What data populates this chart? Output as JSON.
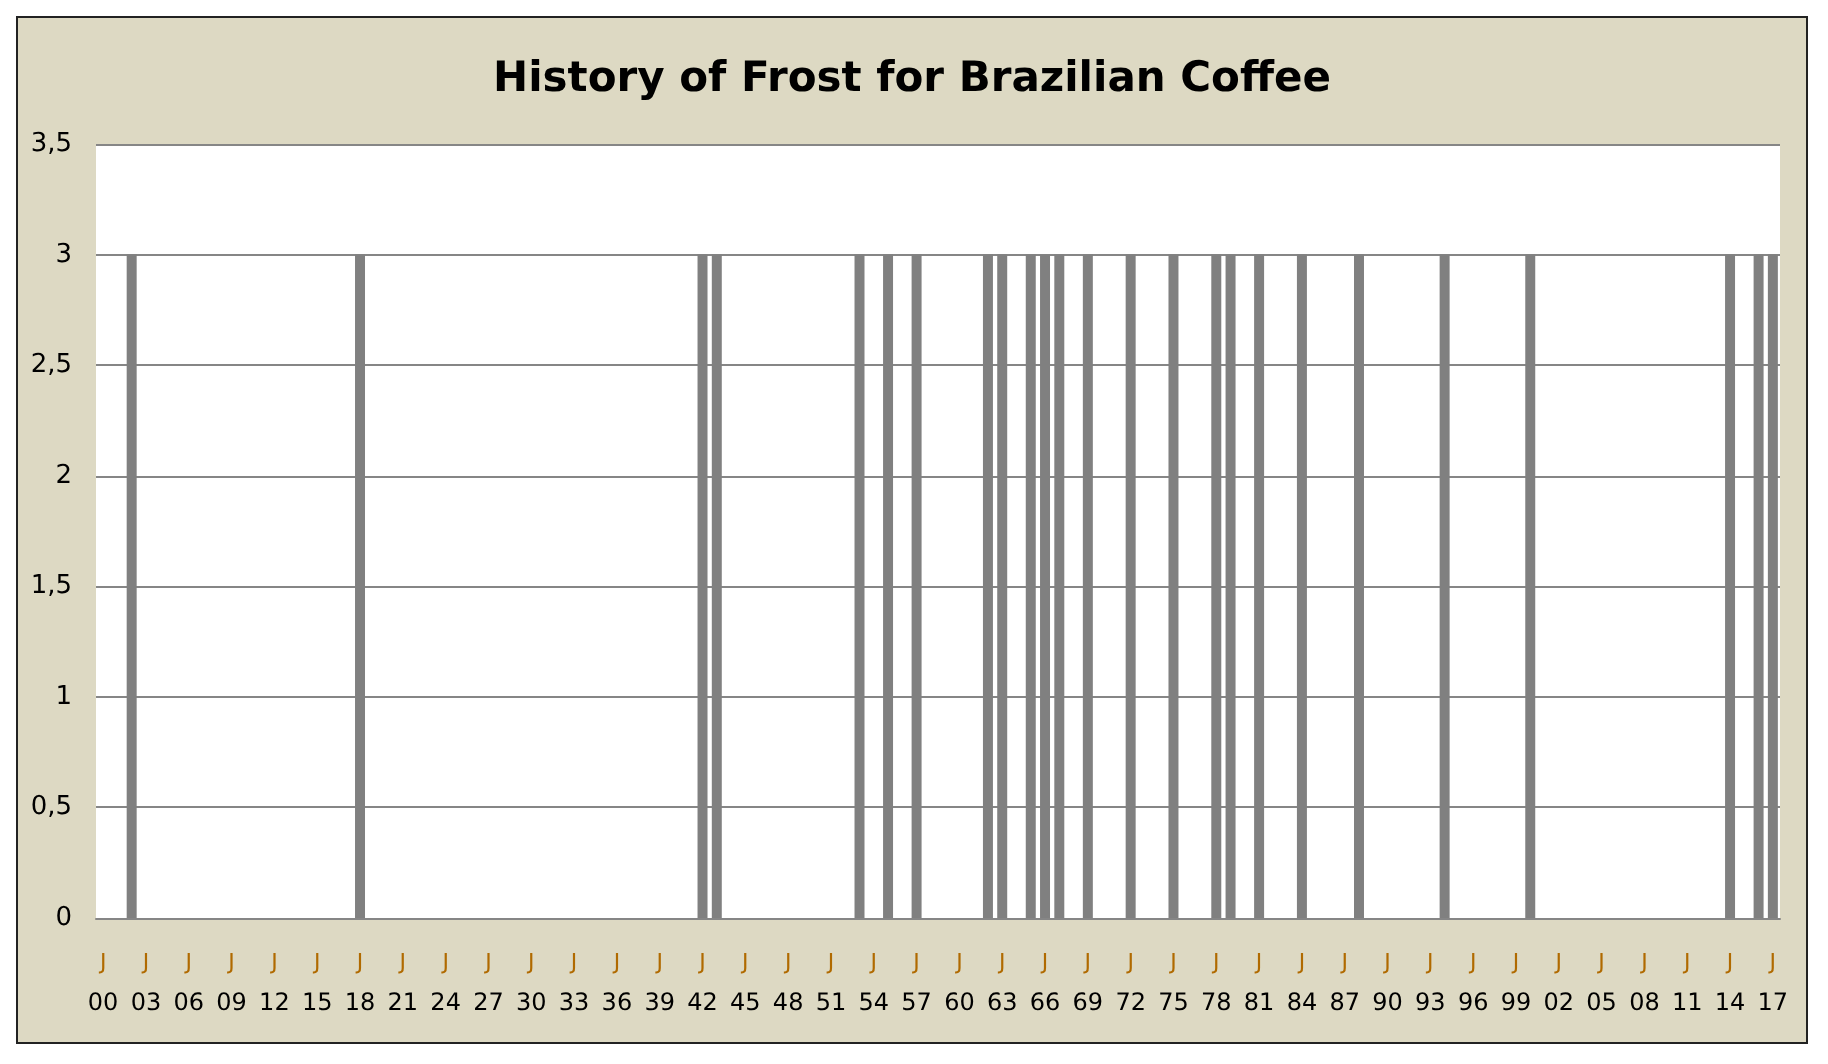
{
  "chart_data": {
    "type": "bar",
    "title": "History of Frost for Brazilian Coffee",
    "categories": [
      "J\n00",
      null,
      null,
      "J\n03",
      null,
      null,
      "J\n06",
      null,
      null,
      "J\n09",
      null,
      null,
      "J\n12",
      null,
      null,
      "J\n15",
      null,
      null,
      "J\n18",
      null,
      null,
      "J\n21",
      null,
      null,
      "J\n24",
      null,
      null,
      "J\n27",
      null,
      null,
      "J\n30",
      null,
      null,
      "J\n33",
      null,
      null,
      "J\n36",
      null,
      null,
      "J\n39",
      null,
      null,
      "J\n42",
      null,
      null,
      "J\n45",
      null,
      null,
      "J\n48",
      null,
      null,
      "J\n51",
      null,
      null,
      "J\n54",
      null,
      null,
      "J\n57",
      null,
      null,
      "J\n60",
      null,
      null,
      "J\n63",
      null,
      null,
      "J\n66",
      null,
      null,
      "J\n69",
      null,
      null,
      "J\n72",
      null,
      null,
      "J\n75",
      null,
      null,
      "J\n78",
      null,
      null,
      "J\n81",
      null,
      null,
      "J\n84",
      null,
      null,
      "J\n87",
      null,
      null,
      "J\n90",
      null,
      null,
      "J\n93",
      null,
      null,
      "J\n96",
      null,
      null,
      "J\n99",
      null,
      null,
      "J\n02",
      null,
      null,
      "J\n05",
      null,
      null,
      "J\n08",
      null,
      null,
      "J\n11",
      null,
      null,
      "J\n14",
      null,
      null,
      "J\n17"
    ],
    "values": [
      0,
      0,
      3,
      0,
      0,
      0,
      0,
      0,
      0,
      0,
      0,
      0,
      0,
      0,
      0,
      0,
      0,
      0,
      3,
      0,
      0,
      0,
      0,
      0,
      0,
      0,
      0,
      0,
      0,
      0,
      0,
      0,
      0,
      0,
      0,
      0,
      0,
      0,
      0,
      0,
      0,
      0,
      3,
      3,
      0,
      0,
      0,
      0,
      0,
      0,
      0,
      0,
      0,
      3,
      0,
      3,
      0,
      3,
      0,
      0,
      0,
      0,
      3,
      3,
      0,
      3,
      3,
      3,
      0,
      3,
      0,
      0,
      3,
      0,
      0,
      3,
      0,
      0,
      3,
      3,
      0,
      3,
      0,
      0,
      3,
      0,
      0,
      0,
      3,
      0,
      0,
      0,
      0,
      0,
      3,
      0,
      0,
      0,
      0,
      0,
      3,
      0,
      0,
      0,
      0,
      0,
      0,
      0,
      0,
      0,
      0,
      0,
      0,
      0,
      3,
      0,
      3,
      3
    ],
    "color": "#808080",
    "ylim": [
      0,
      3.5
    ],
    "yticks": [
      0,
      {
        "value": 0.5,
        "label": "0,5"
      },
      1,
      {
        "value": 1.5,
        "label": "1,5"
      },
      2,
      {
        "value": 2.5,
        "label": "2,5"
      },
      3,
      {
        "value": 3.5,
        "label": "3,5"
      }
    ],
    "grid": "y"
  }
}
